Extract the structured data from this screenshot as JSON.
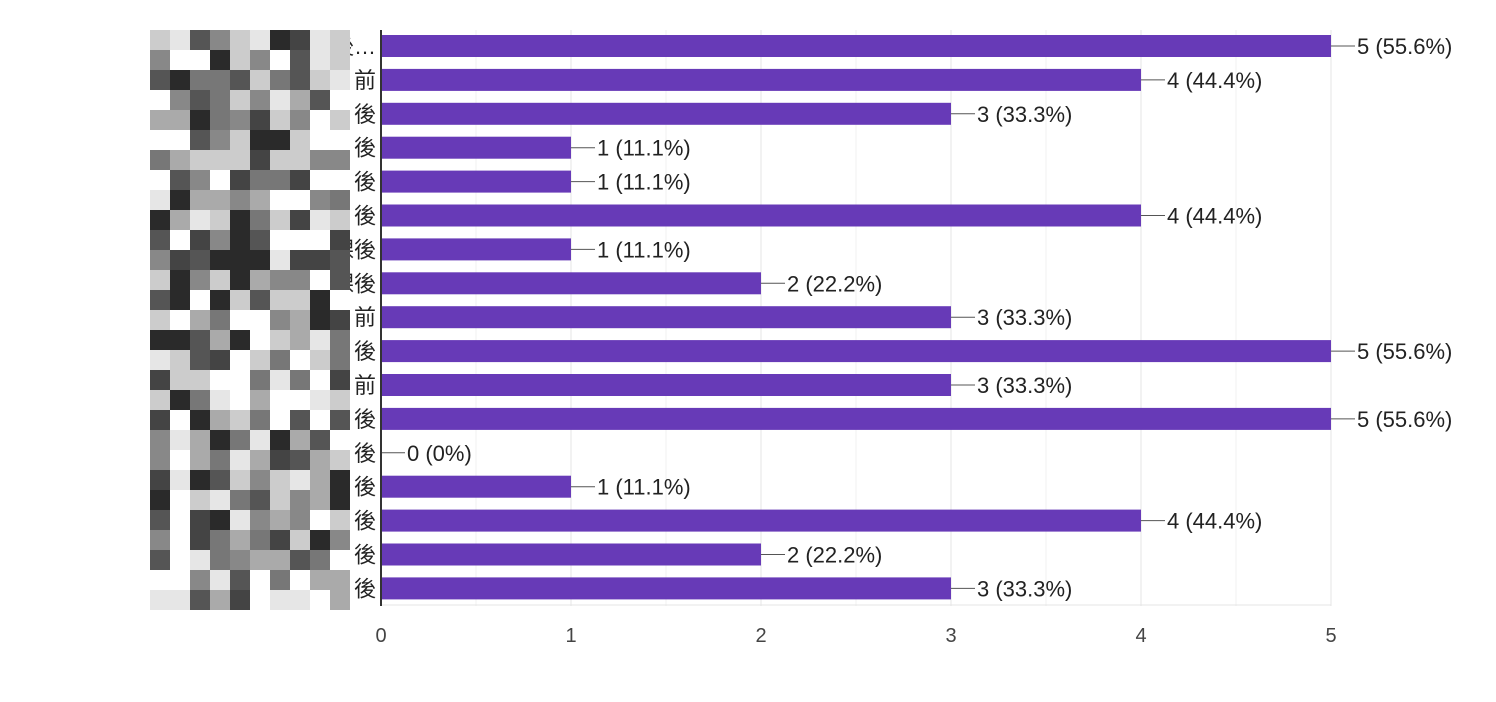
{
  "chart_data": {
    "type": "bar",
    "orientation": "horizontal",
    "title": "",
    "xlabel": "",
    "ylabel": "",
    "categories": [
      "11月 後…",
      "前",
      "11月 後",
      "11月 後",
      "11月 後",
      "11月 後",
      "11月（土）放課後",
      "11月 課後",
      "前",
      "11月 後",
      "1 前",
      "1 後",
      "11. 後",
      "後",
      "後",
      "後",
      "11 後"
    ],
    "values": [
      5,
      4,
      3,
      1,
      1,
      4,
      1,
      2,
      3,
      5,
      3,
      5,
      0,
      1,
      4,
      2,
      3
    ],
    "data_labels": [
      "5 (55.6%)",
      "4 (44.4%)",
      "3 (33.3%)",
      "1 (11.1%)",
      "1 (11.1%)",
      "4 (44.4%)",
      "1 (11.1%)",
      "2 (22.2%)",
      "3 (33.3%)",
      "5 (55.6%)",
      "3 (33.3%)",
      "5 (55.6%)",
      "0 (0%)",
      "1 (11.1%)",
      "4 (44.4%)",
      "2 (22.2%)",
      "3 (33.3%)"
    ],
    "xlim": [
      0,
      5
    ],
    "xticks": [
      "0",
      "1",
      "2",
      "3",
      "4",
      "5"
    ],
    "grid": true,
    "bar_color": "#673ab7"
  }
}
